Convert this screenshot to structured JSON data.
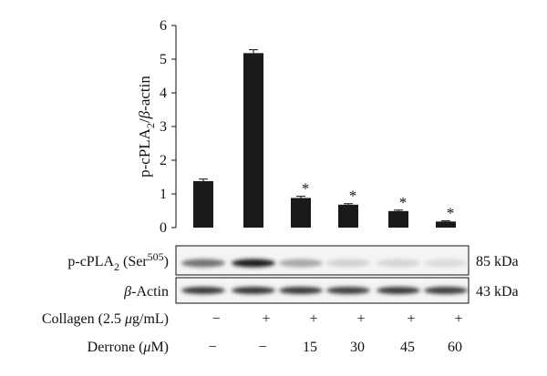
{
  "chart_data": {
    "type": "bar",
    "ylabel": "p-cPLA2/β-actin",
    "ylim": [
      0,
      6
    ],
    "yticks": [
      0,
      1,
      2,
      3,
      4,
      5,
      6
    ],
    "grid": false,
    "legend": "none",
    "bar_color": "#1a1a1a",
    "values": [
      1.38,
      5.18,
      0.88,
      0.68,
      0.49,
      0.18
    ],
    "errors": [
      0.06,
      0.1,
      0.05,
      0.03,
      0.03,
      0.02
    ],
    "significance": [
      "",
      "",
      "*",
      "*",
      "*",
      "*"
    ]
  },
  "blot": {
    "rows": [
      {
        "label_main": "p-cPLA",
        "label_sub": "2",
        "label_paren_open": " (Ser",
        "label_sup": "505",
        "label_paren_close": ")",
        "kda": "85 kDa",
        "intensity": [
          0.55,
          0.95,
          0.3,
          0.12,
          0.1,
          0.07
        ]
      },
      {
        "label_main": "β-Actin",
        "kda": "43 kDa",
        "intensity": [
          0.8,
          0.82,
          0.8,
          0.78,
          0.8,
          0.79
        ]
      }
    ]
  },
  "conditions": [
    {
      "label": "Collagen (2.5 μg/mL)",
      "values": [
        "−",
        "+",
        "+",
        "+",
        "+",
        "+"
      ]
    },
    {
      "label": "Derrone (μM)",
      "values": [
        "−",
        "−",
        "15",
        "30",
        "45",
        "60"
      ]
    }
  ]
}
